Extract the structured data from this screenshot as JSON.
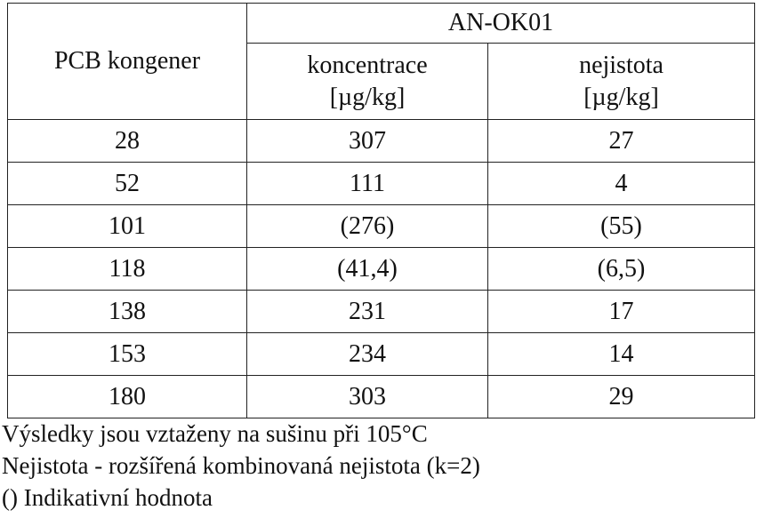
{
  "table": {
    "row_header": "PCB kongener",
    "group_header": "AN-OK01",
    "columns": [
      {
        "name": "koncentrace",
        "unit": "[µg/kg]"
      },
      {
        "name": "nejistota",
        "unit": "[µg/kg]"
      }
    ],
    "rows": [
      {
        "congener": "28",
        "concentration": "307",
        "uncertainty": "27"
      },
      {
        "congener": "52",
        "concentration": "111",
        "uncertainty": "4"
      },
      {
        "congener": "101",
        "concentration": "(276)",
        "uncertainty": "(55)"
      },
      {
        "congener": "118",
        "concentration": "(41,4)",
        "uncertainty": "(6,5)"
      },
      {
        "congener": "138",
        "concentration": "231",
        "uncertainty": "17"
      },
      {
        "congener": "153",
        "concentration": "234",
        "uncertainty": "14"
      },
      {
        "congener": "180",
        "concentration": "303",
        "uncertainty": "29"
      }
    ]
  },
  "notes": [
    "Výsledky jsou vztaženy na sušinu při 105°C",
    "Nejistota - rozšířená kombinovaná nejistota (k=2)",
    "()  Indikativní hodnota"
  ]
}
